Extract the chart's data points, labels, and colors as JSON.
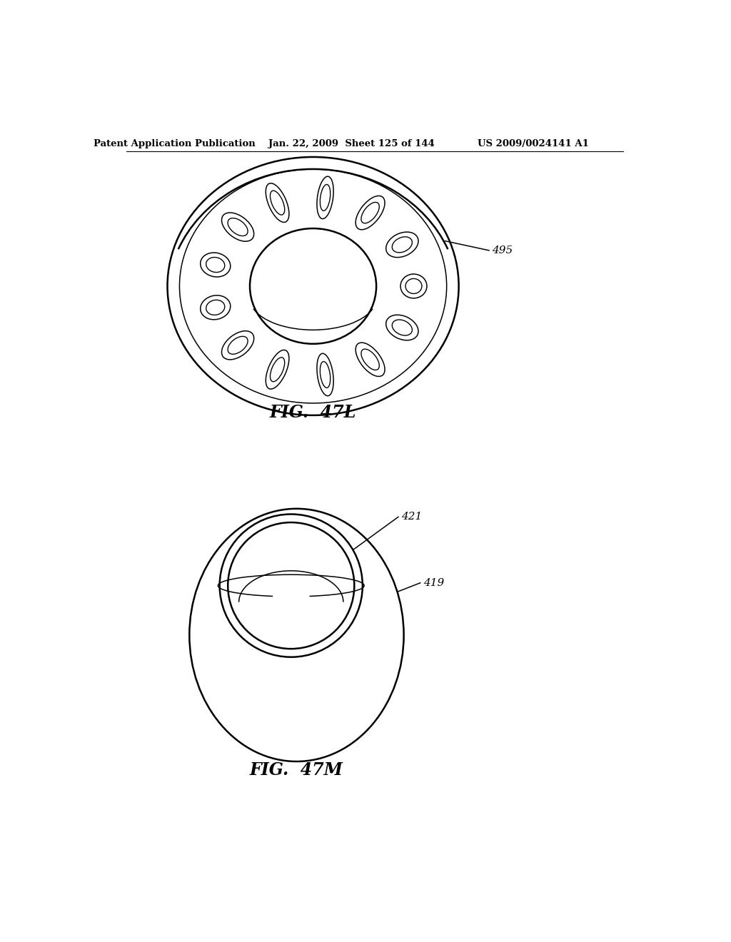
{
  "bg_color": "#ffffff",
  "header_left": "Patent Application Publication",
  "header_mid": "Jan. 22, 2009  Sheet 125 of 144",
  "header_right": "US 2009/0024141 A1",
  "fig1_label": "FIG.  47L",
  "fig2_label": "FIG.  47M",
  "label_495": "495",
  "label_421": "421",
  "label_419": "419",
  "lw_main": 1.8,
  "lw_thin": 1.1
}
